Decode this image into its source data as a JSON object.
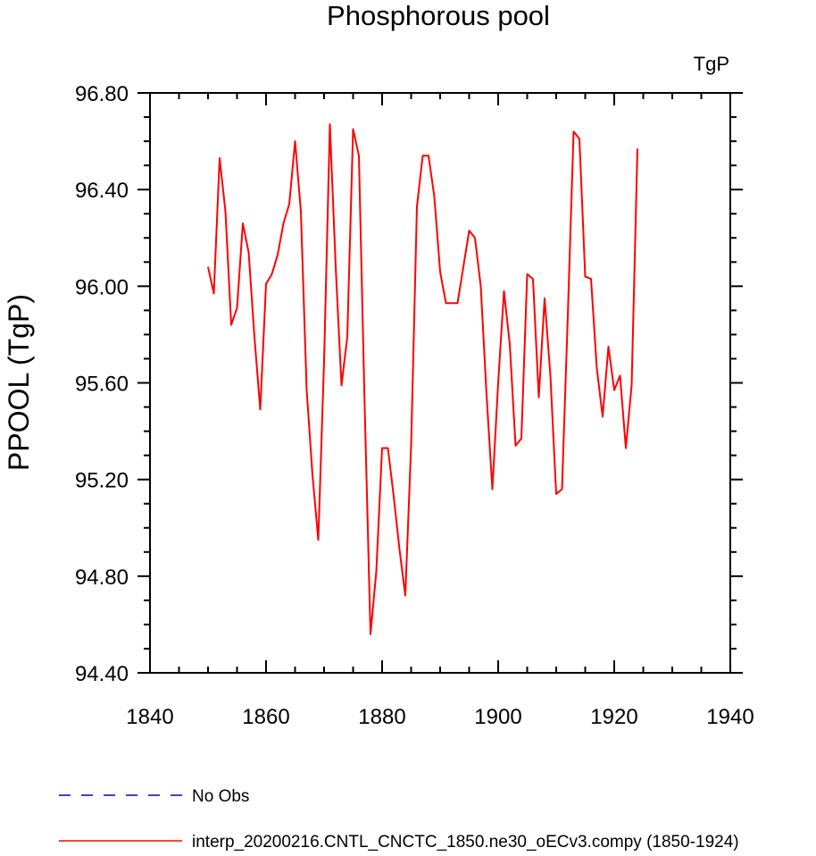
{
  "chart_data": {
    "type": "line",
    "title": "Phosphorous pool",
    "units_label": "TgP",
    "ylabel": "PPOOL  (TgP)",
    "xlabel": "",
    "xlim": [
      1840,
      1940
    ],
    "ylim": [
      94.4,
      96.8
    ],
    "x_ticks": [
      1840,
      1860,
      1880,
      1900,
      1920,
      1940
    ],
    "y_ticks": [
      "94.40",
      "94.80",
      "95.20",
      "95.60",
      "96.00",
      "96.40",
      "96.80"
    ],
    "y_tick_values": [
      94.4,
      94.8,
      95.2,
      95.6,
      96.0,
      96.4,
      96.8
    ],
    "grid": false,
    "legend_position": "bottom",
    "series": [
      {
        "name": "No Obs",
        "color": "#0000cc",
        "dash": "dashed",
        "x": [],
        "values": []
      },
      {
        "name": "interp_20200216.CNTL_CNCTC_1850.ne30_oECv3.compy (1850-1924)",
        "color": "#ff0000",
        "dash": "solid",
        "x": [
          1850,
          1851,
          1852,
          1853,
          1854,
          1855,
          1856,
          1857,
          1858,
          1859,
          1860,
          1861,
          1862,
          1863,
          1864,
          1865,
          1866,
          1867,
          1868,
          1869,
          1870,
          1871,
          1872,
          1873,
          1874,
          1875,
          1876,
          1877,
          1878,
          1879,
          1880,
          1881,
          1882,
          1883,
          1884,
          1885,
          1886,
          1887,
          1888,
          1889,
          1890,
          1891,
          1892,
          1893,
          1894,
          1895,
          1896,
          1897,
          1898,
          1899,
          1900,
          1901,
          1902,
          1903,
          1904,
          1905,
          1906,
          1907,
          1908,
          1909,
          1910,
          1911,
          1912,
          1913,
          1914,
          1915,
          1916,
          1917,
          1918,
          1919,
          1920,
          1921,
          1922,
          1923,
          1924
        ],
        "values": [
          96.08,
          95.97,
          96.53,
          96.31,
          95.84,
          95.91,
          96.26,
          96.14,
          95.79,
          95.49,
          96.01,
          96.05,
          96.13,
          96.26,
          96.34,
          96.6,
          96.31,
          95.57,
          95.22,
          94.95,
          95.69,
          96.67,
          96.08,
          95.59,
          95.79,
          96.65,
          96.54,
          95.5,
          94.56,
          94.82,
          95.33,
          95.33,
          95.13,
          94.91,
          94.72,
          95.34,
          96.33,
          96.54,
          96.54,
          96.37,
          96.06,
          95.93,
          95.93,
          95.93,
          96.08,
          96.23,
          96.2,
          96.0,
          95.55,
          95.16,
          95.6,
          95.98,
          95.76,
          95.34,
          95.37,
          96.05,
          96.03,
          95.54,
          95.95,
          95.63,
          95.14,
          95.16,
          95.88,
          96.64,
          96.61,
          96.04,
          96.03,
          95.66,
          95.46,
          95.75,
          95.57,
          95.63,
          95.33,
          95.59,
          96.57
        ]
      }
    ]
  }
}
